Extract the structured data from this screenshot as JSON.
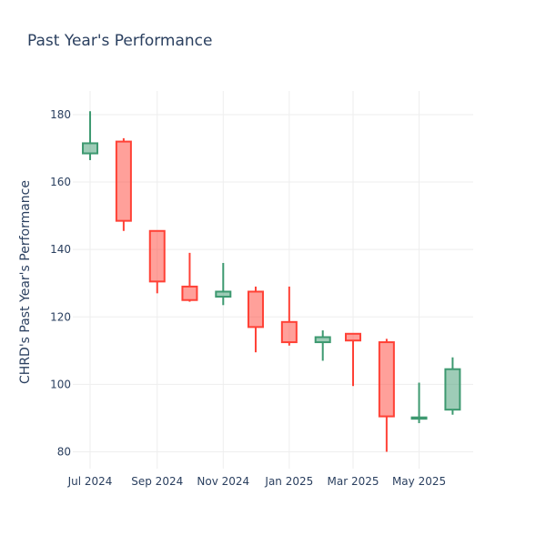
{
  "chart_data": {
    "type": "candlestick",
    "title": "Past Year's Performance",
    "xlabel": "",
    "ylabel": "CHRD's Past Year's Performance",
    "ylim": [
      75,
      187
    ],
    "y_ticks": [
      80,
      100,
      120,
      140,
      160,
      180
    ],
    "x_ticks": [
      {
        "label": "Jul 2024",
        "date": "2024-07-01"
      },
      {
        "label": "Sep 2024",
        "date": "2024-09-01"
      },
      {
        "label": "Nov 2024",
        "date": "2024-11-01"
      },
      {
        "label": "Jan 2025",
        "date": "2025-01-01"
      },
      {
        "label": "Mar 2025",
        "date": "2025-03-01"
      },
      {
        "label": "May 2025",
        "date": "2025-05-01"
      }
    ],
    "x_range": [
      "2024-06-15",
      "2025-06-20"
    ],
    "grid": true,
    "increasing_color": "#3d9970",
    "decreasing_color": "#ff4136",
    "candles": [
      {
        "date": "2024-07-01",
        "open": 168.5,
        "high": 181.0,
        "low": 166.5,
        "close": 171.5
      },
      {
        "date": "2024-08-01",
        "open": 172.0,
        "high": 173.0,
        "low": 145.5,
        "close": 148.5
      },
      {
        "date": "2024-09-01",
        "open": 145.5,
        "high": 145.5,
        "low": 127.0,
        "close": 130.5
      },
      {
        "date": "2024-10-01",
        "open": 129.0,
        "high": 139.0,
        "low": 124.5,
        "close": 125.0
      },
      {
        "date": "2024-11-01",
        "open": 126.0,
        "high": 136.0,
        "low": 123.5,
        "close": 127.5
      },
      {
        "date": "2024-12-01",
        "open": 127.5,
        "high": 129.0,
        "low": 109.5,
        "close": 117.0
      },
      {
        "date": "2025-01-01",
        "open": 118.5,
        "high": 129.0,
        "low": 111.5,
        "close": 112.5
      },
      {
        "date": "2025-02-01",
        "open": 112.5,
        "high": 116.0,
        "low": 107.0,
        "close": 114.0
      },
      {
        "date": "2025-03-01",
        "open": 115.0,
        "high": 115.0,
        "low": 99.5,
        "close": 113.0
      },
      {
        "date": "2025-04-01",
        "open": 112.5,
        "high": 113.5,
        "low": 80.0,
        "close": 90.5
      },
      {
        "date": "2025-05-01",
        "open": 89.8,
        "high": 100.5,
        "low": 88.5,
        "close": 90.2
      },
      {
        "date": "2025-06-01",
        "open": 92.5,
        "high": 108.0,
        "low": 91.0,
        "close": 104.5
      }
    ]
  }
}
